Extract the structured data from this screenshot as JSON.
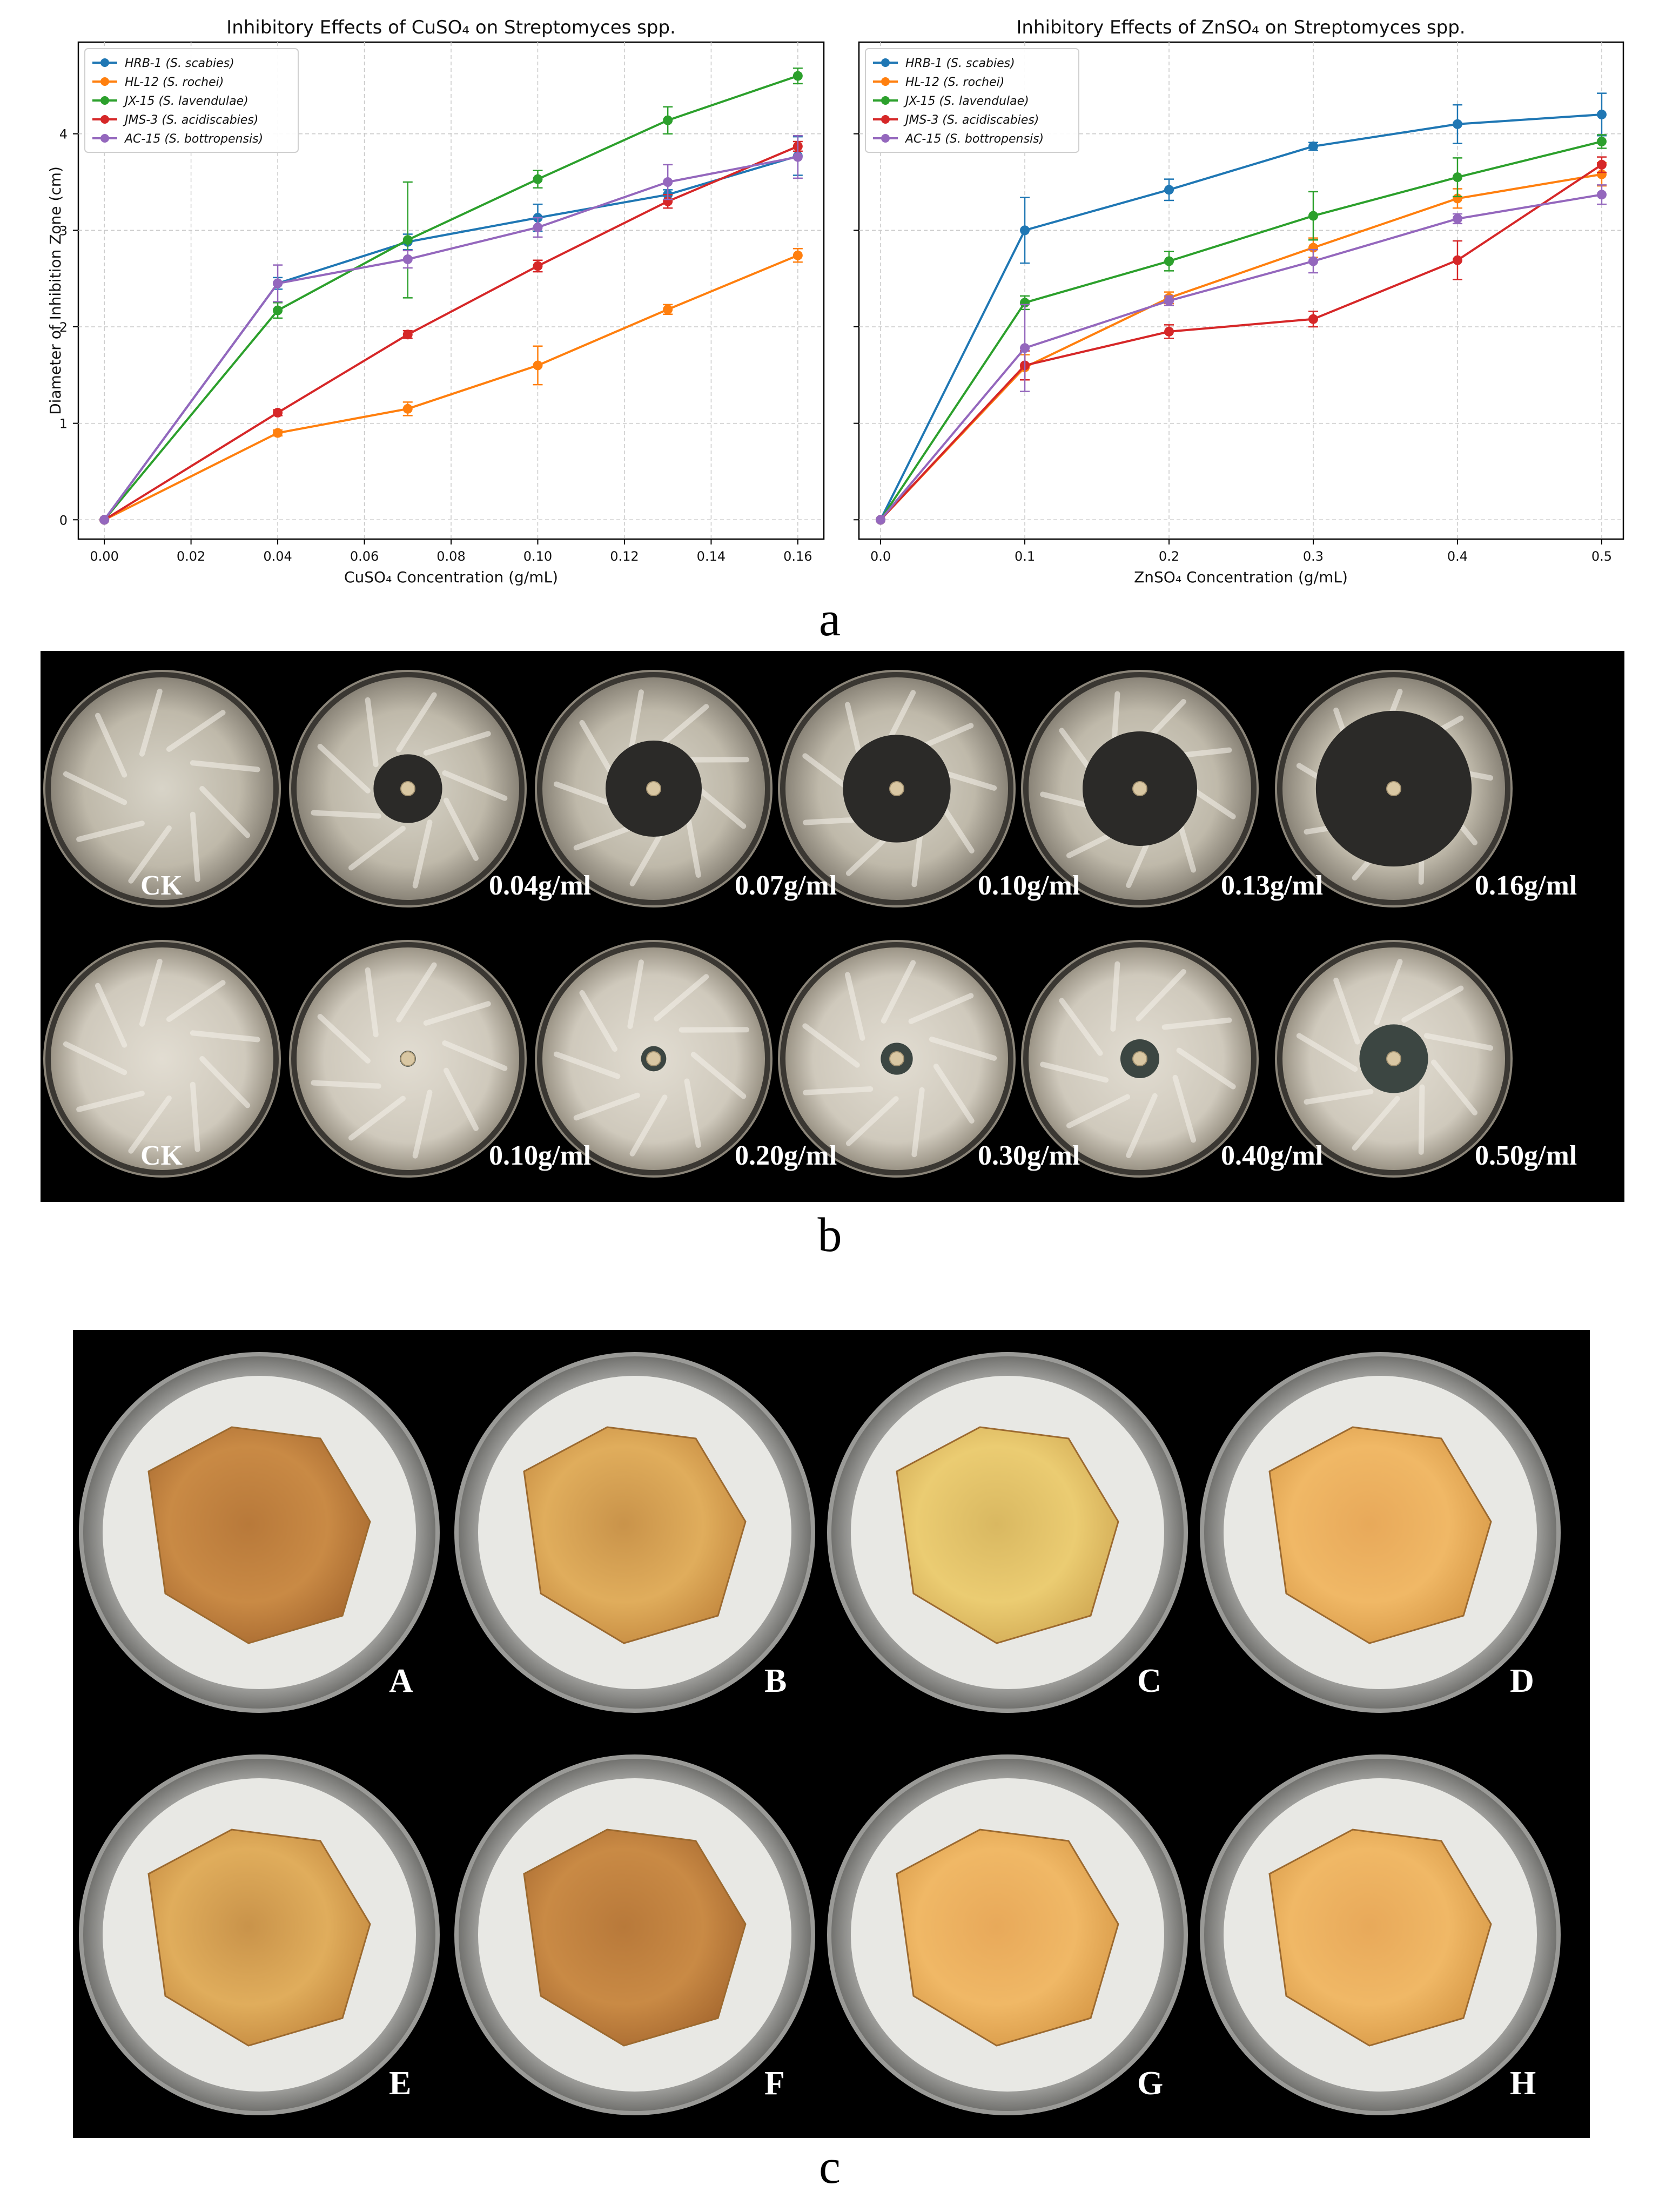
{
  "chart_data": [
    {
      "type": "line",
      "title": "Inhibitory Effects of CuSO₄ on Streptomyces spp.",
      "xlabel": "CuSO₄ Concentration (g/mL)",
      "ylabel": "Diameter of Inhibition Zone (cm)",
      "xlim": [
        -0.006,
        0.166
      ],
      "ylim": [
        -0.2,
        4.95
      ],
      "xticks": [
        0.0,
        0.02,
        0.04,
        0.06,
        0.08,
        0.1,
        0.12,
        0.14,
        0.16
      ],
      "xtick_labels": [
        "0.00",
        "0.02",
        "0.04",
        "0.06",
        "0.08",
        "0.10",
        "0.12",
        "0.14",
        "0.16"
      ],
      "yticks": [
        0,
        1,
        2,
        3,
        4
      ],
      "ytick_labels": [
        "0",
        "1",
        "2",
        "3",
        "4"
      ],
      "grid": true,
      "legend": "top-left",
      "x": [
        0,
        0.04,
        0.07,
        0.1,
        0.13,
        0.16
      ],
      "series": [
        {
          "name": "HRB-1 (S. scabies)",
          "color": "#1f77b4",
          "values": [
            0,
            2.45,
            2.88,
            3.13,
            3.37,
            3.77
          ],
          "err": [
            0,
            0.06,
            0.08,
            0.14,
            0.05,
            0.2
          ]
        },
        {
          "name": "HL-12 (S. rochei)",
          "color": "#ff7f0e",
          "values": [
            0,
            0.9,
            1.15,
            1.6,
            2.18,
            2.74
          ],
          "err": [
            0,
            0.03,
            0.07,
            0.2,
            0.05,
            0.07
          ]
        },
        {
          "name": "JX-15 (S. lavendulae)",
          "color": "#2ca02c",
          "values": [
            0,
            2.17,
            2.9,
            3.53,
            4.14,
            4.6
          ],
          "err": [
            0,
            0.08,
            0.6,
            0.09,
            0.14,
            0.08
          ]
        },
        {
          "name": "JMS-3 (S. acidiscabies)",
          "color": "#d62728",
          "values": [
            0,
            1.11,
            1.92,
            2.63,
            3.3,
            3.87
          ],
          "err": [
            0,
            0.03,
            0.04,
            0.06,
            0.07,
            0.05
          ]
        },
        {
          "name": "AC-15 (S. bottropensis)",
          "color": "#9467bd",
          "values": [
            0,
            2.45,
            2.7,
            3.03,
            3.5,
            3.76
          ],
          "err": [
            0,
            0.19,
            0.09,
            0.1,
            0.18,
            0.22
          ]
        }
      ]
    },
    {
      "type": "line",
      "title": "Inhibitory Effects of ZnSO₄ on Streptomyces spp.",
      "xlabel": "ZnSO₄ Concentration (g/mL)",
      "ylabel": "",
      "xlim": [
        -0.015,
        0.515
      ],
      "ylim": [
        -0.2,
        4.95
      ],
      "xticks": [
        0.0,
        0.1,
        0.2,
        0.3,
        0.4,
        0.5
      ],
      "xtick_labels": [
        "0.0",
        "0.1",
        "0.2",
        "0.3",
        "0.4",
        "0.5"
      ],
      "yticks": [
        0,
        1,
        2,
        3,
        4
      ],
      "ytick_labels": [
        "",
        "",
        "",
        "",
        ""
      ],
      "grid": true,
      "legend": "top-left",
      "x": [
        0,
        0.1,
        0.2,
        0.3,
        0.4,
        0.5
      ],
      "series": [
        {
          "name": "HRB-1 (S. scabies)",
          "color": "#1f77b4",
          "values": [
            0,
            3.0,
            3.42,
            3.87,
            4.1,
            4.2
          ],
          "err": [
            0,
            0.34,
            0.11,
            0.04,
            0.2,
            0.22
          ]
        },
        {
          "name": "HL-12 (S. rochei)",
          "color": "#ff7f0e",
          "values": [
            0,
            1.58,
            2.3,
            2.82,
            3.33,
            3.58
          ],
          "err": [
            0,
            0.13,
            0.06,
            0.1,
            0.1,
            0.12
          ]
        },
        {
          "name": "JX-15 (S. lavendulae)",
          "color": "#2ca02c",
          "values": [
            0,
            2.25,
            2.68,
            3.15,
            3.55,
            3.92
          ],
          "err": [
            0,
            0.07,
            0.1,
            0.25,
            0.2,
            0.07
          ]
        },
        {
          "name": "JMS-3 (S. acidiscabies)",
          "color": "#d62728",
          "values": [
            0,
            1.6,
            1.95,
            2.08,
            2.69,
            3.68
          ],
          "err": [
            0,
            0.15,
            0.07,
            0.08,
            0.2,
            0.08
          ]
        },
        {
          "name": "AC-15 (S. bottropensis)",
          "color": "#9467bd",
          "values": [
            0,
            1.78,
            2.27,
            2.68,
            3.12,
            3.37
          ],
          "err": [
            0,
            0.45,
            0.05,
            0.12,
            0.05,
            0.1
          ]
        }
      ]
    }
  ],
  "panels": {
    "a": "a",
    "b": "b",
    "c": "c"
  },
  "plates": {
    "cu_labels": [
      "CK",
      "0.04g/ml",
      "0.07g/ml",
      "0.10g/ml",
      "0.13g/ml",
      "0.16g/ml"
    ],
    "zn_labels": [
      "CK",
      "0.10g/ml",
      "0.20g/ml",
      "0.30g/ml",
      "0.40g/ml",
      "0.50g/ml"
    ],
    "cu_zone_fraction": [
      0,
      0.3,
      0.42,
      0.47,
      0.5,
      0.68
    ],
    "zn_zone_fraction": [
      0,
      0.07,
      0.11,
      0.14,
      0.17,
      0.3
    ]
  },
  "potatoes": {
    "labels": [
      "A",
      "B",
      "C",
      "D",
      "E",
      "F",
      "G",
      "H"
    ]
  }
}
